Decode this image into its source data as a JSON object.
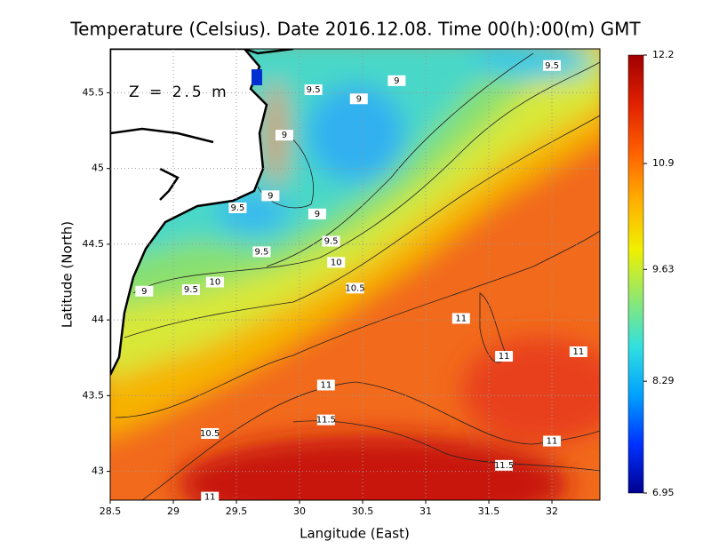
{
  "map": {
    "title": "Temperature (Celsius). Date 2016.12.08. Time 00(h):00(m) GMT",
    "depth_label": "Z = 2.5 m",
    "xlabel": "Langitude (East)",
    "ylabel": "Latitude (North)",
    "xlim": [
      28.5,
      32.38
    ],
    "ylim": [
      42.81,
      45.79
    ],
    "xticks": [
      28.5,
      29,
      29.5,
      30,
      30.5,
      31,
      31.5,
      32
    ],
    "yticks": [
      43,
      43.5,
      44,
      44.5,
      45,
      45.5
    ],
    "grid": true,
    "colorbar": {
      "lim": [
        6.95,
        12.2
      ],
      "ticks": [
        12.2,
        10.9,
        9.63,
        8.29,
        6.95
      ],
      "colors": [
        "#000090",
        "#0030ff",
        "#00a0ff",
        "#30e0e0",
        "#90e870",
        "#f0f000",
        "#ffb000",
        "#ff6000",
        "#e02000",
        "#a00000"
      ]
    },
    "contour_labels": [
      {
        "value": 9.5,
        "lon": 32.0,
        "lat": 45.68
      },
      {
        "value": 9,
        "lon": 30.77,
        "lat": 45.58
      },
      {
        "value": 9.5,
        "lon": 30.11,
        "lat": 45.52
      },
      {
        "value": 9,
        "lon": 30.47,
        "lat": 45.46
      },
      {
        "value": 9,
        "lon": 29.88,
        "lat": 45.22
      },
      {
        "value": 9,
        "lon": 29.77,
        "lat": 44.82
      },
      {
        "value": 9.5,
        "lon": 29.51,
        "lat": 44.74
      },
      {
        "value": 9,
        "lon": 30.14,
        "lat": 44.7
      },
      {
        "value": 9.5,
        "lon": 30.25,
        "lat": 44.52
      },
      {
        "value": 9.5,
        "lon": 29.7,
        "lat": 44.45
      },
      {
        "value": 10,
        "lon": 30.29,
        "lat": 44.38
      },
      {
        "value": 10,
        "lon": 29.33,
        "lat": 44.25
      },
      {
        "value": 9.5,
        "lon": 29.14,
        "lat": 44.2
      },
      {
        "value": 9,
        "lon": 28.77,
        "lat": 44.19
      },
      {
        "value": 10.5,
        "lon": 30.44,
        "lat": 44.21
      },
      {
        "value": 11,
        "lon": 31.28,
        "lat": 44.01
      },
      {
        "value": 11,
        "lon": 31.62,
        "lat": 43.76
      },
      {
        "value": 11,
        "lon": 32.21,
        "lat": 43.79
      },
      {
        "value": 11,
        "lon": 30.21,
        "lat": 43.57
      },
      {
        "value": 11.5,
        "lon": 30.21,
        "lat": 43.34
      },
      {
        "value": 10.5,
        "lon": 29.29,
        "lat": 43.25
      },
      {
        "value": 11,
        "lon": 32.0,
        "lat": 43.2
      },
      {
        "value": 11.5,
        "lon": 31.62,
        "lat": 43.04
      },
      {
        "value": 11,
        "lon": 29.29,
        "lat": 42.83
      }
    ]
  }
}
